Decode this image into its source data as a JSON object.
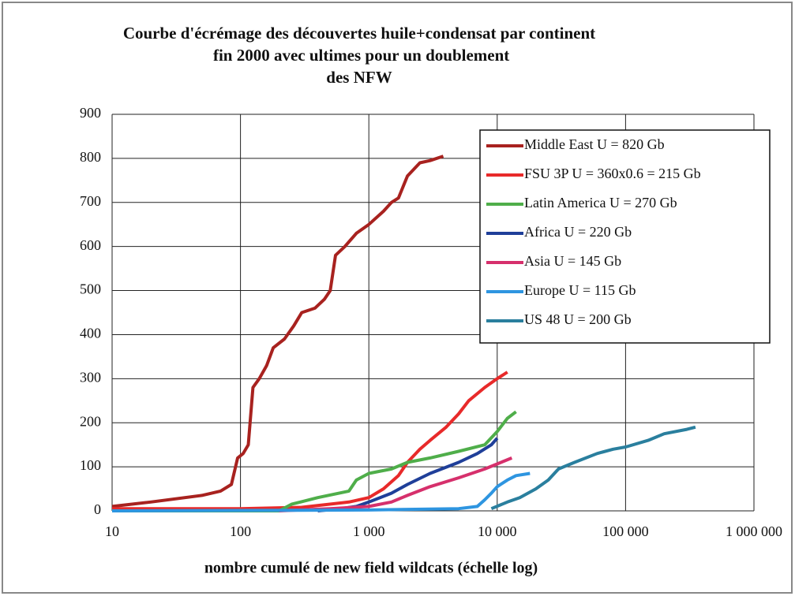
{
  "chart_data": {
    "type": "line",
    "title": "Courbe d'écrémage des découvertes huile+condensat par continent  fin 2000 avec ultimes pour un doublement des NFW",
    "x_label": "nombre cumulé de new field wildcats (échelle log)",
    "xscale": "log",
    "xlim": [
      10,
      1000000
    ],
    "xticks": [
      10,
      100,
      {
        "value": 1000,
        "label": "1 000"
      },
      {
        "value": 10000,
        "label": "10 000"
      },
      {
        "value": 100000,
        "label": "100 000"
      },
      {
        "value": 1000000,
        "label": "1 000 000"
      }
    ],
    "ylim": [
      0,
      900
    ],
    "yticks": [
      0,
      100,
      200,
      300,
      400,
      500,
      600,
      700,
      800,
      900
    ],
    "grid": true,
    "legend": "upper right",
    "series": [
      {
        "name": "Middle East U = 820 Gb",
        "color": "#a8221f",
        "x": [
          10,
          20,
          50,
          70,
          85,
          95,
          105,
          115,
          125,
          140,
          160,
          180,
          220,
          260,
          300,
          380,
          450,
          500,
          550,
          650,
          800,
          1000,
          1300,
          1500,
          1700,
          2000,
          2500,
          3000,
          3800
        ],
        "values": [
          10,
          20,
          35,
          45,
          60,
          120,
          130,
          150,
          280,
          300,
          330,
          370,
          390,
          420,
          450,
          460,
          480,
          500,
          580,
          600,
          630,
          650,
          680,
          700,
          710,
          760,
          790,
          795,
          805
        ]
      },
      {
        "name": "FSU 3P U = 360x0.6 = 215 Gb",
        "color": "#e82a2a",
        "x": [
          10,
          100,
          300,
          700,
          1000,
          1300,
          1700,
          2000,
          2500,
          3000,
          4000,
          5000,
          6000,
          8000,
          10000,
          12000
        ],
        "values": [
          5,
          5,
          8,
          20,
          30,
          50,
          80,
          110,
          140,
          160,
          190,
          220,
          250,
          280,
          300,
          315
        ]
      },
      {
        "name": "Latin America U = 270 Gb",
        "color": "#4fae4a",
        "x": [
          10,
          200,
          250,
          400,
          700,
          800,
          1000,
          1500,
          2000,
          3000,
          5000,
          8000,
          10000,
          12000,
          14000
        ],
        "values": [
          0,
          0,
          15,
          30,
          45,
          70,
          85,
          95,
          110,
          120,
          135,
          150,
          180,
          210,
          225
        ]
      },
      {
        "name": "Africa  U = 220 Gb",
        "color": "#1f3f99",
        "x": [
          400,
          600,
          800,
          1000,
          1500,
          2000,
          3000,
          5000,
          7000,
          9000,
          10000
        ],
        "values": [
          0,
          5,
          10,
          20,
          40,
          60,
          85,
          110,
          130,
          150,
          165
        ]
      },
      {
        "name": "Asia U = 145 Gb",
        "color": "#d6306c",
        "x": [
          200,
          500,
          1000,
          1500,
          2000,
          3000,
          5000,
          8000,
          13000
        ],
        "values": [
          0,
          5,
          10,
          20,
          35,
          55,
          75,
          95,
          120
        ]
      },
      {
        "name": "Europe U = 115 Gb",
        "color": "#2e95e0",
        "x": [
          10,
          1000,
          5000,
          7000,
          8000,
          9000,
          10000,
          12000,
          14000,
          18000
        ],
        "values": [
          0,
          2,
          5,
          10,
          25,
          40,
          55,
          70,
          80,
          85
        ]
      },
      {
        "name": "US 48 U = 200 Gb",
        "color": "#2a7f9e",
        "x": [
          9000,
          12000,
          15000,
          20000,
          25000,
          30000,
          40000,
          60000,
          80000,
          100000,
          150000,
          200000,
          300000,
          350000
        ],
        "values": [
          5,
          20,
          30,
          50,
          70,
          95,
          110,
          130,
          140,
          145,
          160,
          175,
          185,
          190
        ]
      }
    ]
  }
}
